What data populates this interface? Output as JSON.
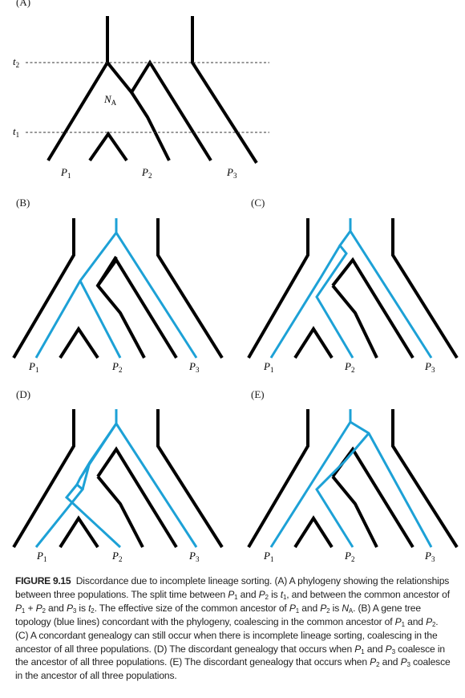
{
  "panels": [
    {
      "id": "A",
      "label": "(A)"
    },
    {
      "id": "B",
      "label": "(B)"
    },
    {
      "id": "C",
      "label": "(C)"
    },
    {
      "id": "D",
      "label": "(D)"
    },
    {
      "id": "E",
      "label": "(E)"
    }
  ],
  "populations": [
    {
      "letter": "P",
      "index": "1"
    },
    {
      "letter": "P",
      "index": "2"
    },
    {
      "letter": "P",
      "index": "3"
    }
  ],
  "time_labels": [
    {
      "letter": "t",
      "index": "2"
    },
    {
      "letter": "t",
      "index": "1"
    }
  ],
  "ancestral_size": {
    "letter": "N",
    "index": "A"
  },
  "colors": {
    "species_tree": "#000000",
    "gene_tree": "#1da1d6",
    "dashed": "#333333"
  },
  "caption": {
    "figure": "FIGURE 9.15",
    "parts": [
      {
        "t": "Discordance due to incomplete lineage sorting. (A) A phylogeny showing the relationships between three populations. The split time between "
      },
      {
        "i": "P",
        "s": "1"
      },
      {
        "t": " and "
      },
      {
        "i": "P",
        "s": "2"
      },
      {
        "t": " is "
      },
      {
        "i": "t",
        "s": "1"
      },
      {
        "t": ", and between the common ancestor of "
      },
      {
        "i": "P",
        "s": "1"
      },
      {
        "t": " + "
      },
      {
        "i": "P",
        "s": "2"
      },
      {
        "t": " and "
      },
      {
        "i": "P",
        "s": "3"
      },
      {
        "t": " is "
      },
      {
        "i": "t",
        "s": "2"
      },
      {
        "t": ". The effective size of the common ancestor of "
      },
      {
        "i": "P",
        "s": "1"
      },
      {
        "t": " and "
      },
      {
        "i": "P",
        "s": "2"
      },
      {
        "t": " is "
      },
      {
        "i": "N",
        "s": "A"
      },
      {
        "t": ". (B) A gene tree topology (blue lines) concordant with the phylogeny, coalescing in the common ancestor of "
      },
      {
        "i": "P",
        "s": "1"
      },
      {
        "t": " and "
      },
      {
        "i": "P",
        "s": "2"
      },
      {
        "t": ". (C) A concordant genealogy can still occur when there is incomplete lineage sorting, coalescing in the ancestor of all three populations. (D) The discordant genealogy that occurs when "
      },
      {
        "i": "P",
        "s": "1"
      },
      {
        "t": " and "
      },
      {
        "i": "P",
        "s": "3"
      },
      {
        "t": " coalesce in the ancestor of all three populations. (E) The discordant genealogy that occurs when "
      },
      {
        "i": "P",
        "s": "2"
      },
      {
        "t": " and "
      },
      {
        "i": "P",
        "s": "3"
      },
      {
        "t": " coalesce in the ancestor of all three populations."
      }
    ]
  }
}
